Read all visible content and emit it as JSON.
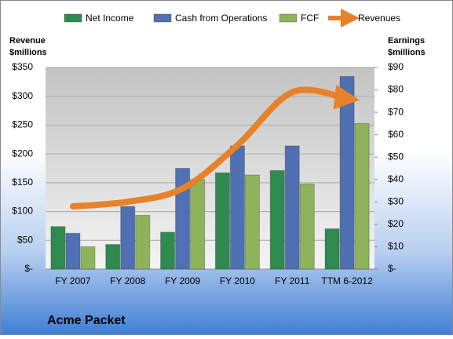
{
  "chart_data": {
    "type": "bar-line",
    "title": "Acme Packet",
    "ylabel_lines": [
      "Revenue",
      "$millions"
    ],
    "y2label_lines": [
      "Earnings",
      "$millions"
    ],
    "categories": [
      "FY 2007",
      "FY 2008",
      "FY 2009",
      "FY 2010",
      "FY 2011",
      "TTM 6-2012"
    ],
    "series": [
      {
        "name": "Net Income",
        "color": "#2e8a4e",
        "type": "bar",
        "axis": "y2",
        "values": [
          19,
          11,
          16.5,
          43,
          44,
          18
        ]
      },
      {
        "name": "Cash from Operations",
        "color": "#4f70b2",
        "type": "bar",
        "axis": "y2",
        "values": [
          16,
          28,
          45,
          55,
          55,
          86
        ]
      },
      {
        "name": "FCF",
        "color": "#8db45a",
        "type": "bar",
        "axis": "y2",
        "values": [
          10,
          24,
          40,
          42,
          38,
          65
        ]
      },
      {
        "name": "Revenues",
        "color": "#e8822a",
        "type": "line",
        "axis": "y",
        "values": [
          109,
          117,
          140,
          215,
          307,
          296
        ]
      }
    ],
    "ylim": [
      0,
      350
    ],
    "yticks": [
      {
        "value": 0,
        "label": "$-"
      },
      {
        "value": 50,
        "label": "$50"
      },
      {
        "value": 100,
        "label": "$100"
      },
      {
        "value": 150,
        "label": "$150"
      },
      {
        "value": 200,
        "label": "$200"
      },
      {
        "value": 250,
        "label": "$250"
      },
      {
        "value": 300,
        "label": "$300"
      },
      {
        "value": 350,
        "label": "$350"
      }
    ],
    "y2lim": [
      0,
      90
    ],
    "y2ticks": [
      {
        "value": 0,
        "label": "$-"
      },
      {
        "value": 10,
        "label": "$10"
      },
      {
        "value": 20,
        "label": "$20"
      },
      {
        "value": 30,
        "label": "$30"
      },
      {
        "value": 40,
        "label": "$40"
      },
      {
        "value": 50,
        "label": "$50"
      },
      {
        "value": 60,
        "label": "$60"
      },
      {
        "value": 70,
        "label": "$70"
      },
      {
        "value": 80,
        "label": "$80"
      },
      {
        "value": 90,
        "label": "$90"
      }
    ],
    "grid": true
  }
}
